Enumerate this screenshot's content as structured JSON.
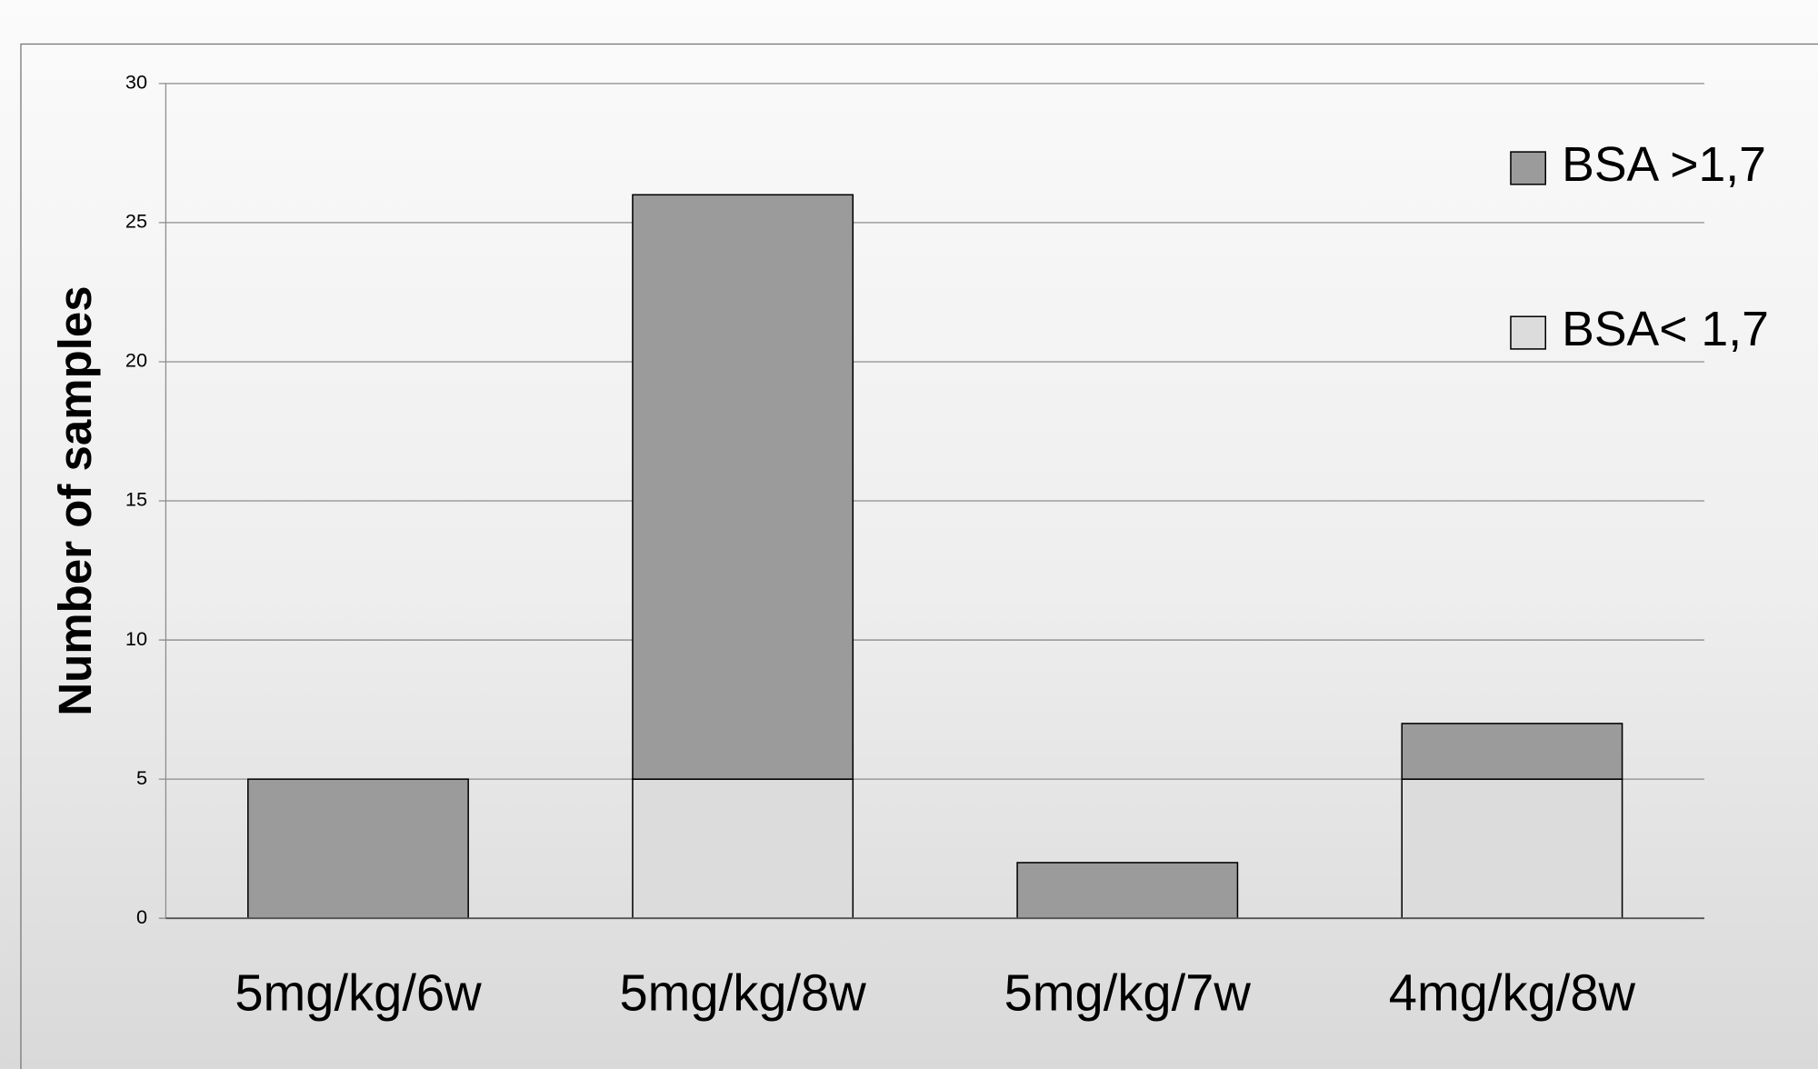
{
  "chart_data": {
    "type": "stacked-bar",
    "y_label": "Number of samples",
    "categories": [
      "5mg/kg/6w",
      "5mg/kg/8w",
      "5mg/kg/7w",
      "4mg/kg/8w"
    ],
    "series": [
      {
        "name": "BSA< 1,7",
        "color": "#dcdcdc",
        "values": [
          0,
          5,
          0,
          5
        ]
      },
      {
        "name": "BSA >1,7",
        "color": "#9b9b9b",
        "values": [
          5,
          21,
          2,
          2
        ]
      }
    ],
    "ylim": [
      0,
      30
    ],
    "yticks": [
      0,
      5,
      10,
      15,
      20,
      25,
      30
    ],
    "grid": true,
    "legend": "top-right"
  }
}
